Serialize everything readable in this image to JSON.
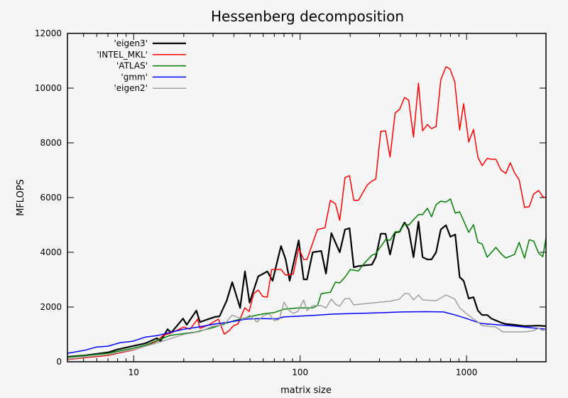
{
  "chart_data": {
    "type": "line",
    "title": "Hessenberg decomposition",
    "xlabel": "matrix size",
    "ylabel": "MFLOPS",
    "xscale": "log",
    "xlim": [
      4,
      3000
    ],
    "ylim": [
      0,
      12000
    ],
    "xticks": [
      {
        "value": 10,
        "label": "10"
      },
      {
        "value": 100,
        "label": "100"
      },
      {
        "value": 1000,
        "label": "1000"
      }
    ],
    "yticks": [
      {
        "value": 0,
        "label": "0"
      },
      {
        "value": 2000,
        "label": "2000"
      },
      {
        "value": 4000,
        "label": "4000"
      },
      {
        "value": 6000,
        "label": "6000"
      },
      {
        "value": 8000,
        "label": "8000"
      },
      {
        "value": 10000,
        "label": "10000"
      },
      {
        "value": 12000,
        "label": "12000"
      }
    ],
    "grid": false,
    "legend_position": "top-left",
    "series": [
      {
        "name": "'eigen3'",
        "color": "#000000",
        "points": [
          [
            4,
            180
          ],
          [
            5.1,
            230
          ],
          [
            7,
            340
          ],
          [
            8,
            450
          ],
          [
            9.8,
            570
          ],
          [
            11.7,
            670
          ],
          [
            13.8,
            860
          ],
          [
            14.5,
            750
          ],
          [
            16,
            1190
          ],
          [
            16.8,
            1060
          ],
          [
            19.8,
            1580
          ],
          [
            20.8,
            1350
          ],
          [
            23.8,
            1870
          ],
          [
            25,
            1450
          ],
          [
            27.2,
            1530
          ],
          [
            30.8,
            1640
          ],
          [
            32.8,
            1660
          ],
          [
            36.2,
            2230
          ],
          [
            39.1,
            2910
          ],
          [
            43.6,
            1970
          ],
          [
            46.6,
            3300
          ],
          [
            49.7,
            2160
          ],
          [
            56,
            3120
          ],
          [
            63.5,
            3300
          ],
          [
            68.3,
            2960
          ],
          [
            76.8,
            4230
          ],
          [
            81.8,
            3740
          ],
          [
            86.5,
            2960
          ],
          [
            98,
            4440
          ],
          [
            105,
            3010
          ],
          [
            110,
            3010
          ],
          [
            119,
            4000
          ],
          [
            134,
            4050
          ],
          [
            143,
            3220
          ],
          [
            154,
            4700
          ],
          [
            173,
            4000
          ],
          [
            186,
            4830
          ],
          [
            198,
            4880
          ],
          [
            210,
            3450
          ],
          [
            224,
            3500
          ],
          [
            270,
            3550
          ],
          [
            285,
            3820
          ],
          [
            305,
            4680
          ],
          [
            326,
            4680
          ],
          [
            347,
            3920
          ],
          [
            372,
            4730
          ],
          [
            396,
            4750
          ],
          [
            424,
            5090
          ],
          [
            449,
            4830
          ],
          [
            480,
            3820
          ],
          [
            514,
            5120
          ],
          [
            544,
            3820
          ],
          [
            582,
            3740
          ],
          [
            616,
            3740
          ],
          [
            656,
            4000
          ],
          [
            700,
            4830
          ],
          [
            752,
            4990
          ],
          [
            800,
            4570
          ],
          [
            855,
            4650
          ],
          [
            909,
            3090
          ],
          [
            960,
            2960
          ],
          [
            1030,
            2310
          ],
          [
            1100,
            2360
          ],
          [
            1170,
            1870
          ],
          [
            1240,
            1710
          ],
          [
            1330,
            1710
          ],
          [
            1410,
            1580
          ],
          [
            1500,
            1510
          ],
          [
            1610,
            1430
          ],
          [
            1720,
            1380
          ],
          [
            1940,
            1350
          ],
          [
            2230,
            1300
          ],
          [
            2710,
            1320
          ],
          [
            3000,
            1300
          ]
        ]
      },
      {
        "name": "'INTEL_MKL'",
        "color": "#ff0000",
        "points": [
          [
            4,
            80
          ],
          [
            7,
            230
          ],
          [
            9.8,
            420
          ],
          [
            11.7,
            570
          ],
          [
            13.8,
            750
          ],
          [
            15,
            960
          ],
          [
            16.5,
            1040
          ],
          [
            18.1,
            1140
          ],
          [
            20,
            1270
          ],
          [
            21.8,
            1190
          ],
          [
            24.2,
            1560
          ],
          [
            25,
            1220
          ],
          [
            28.3,
            1350
          ],
          [
            32.3,
            1560
          ],
          [
            35,
            1010
          ],
          [
            37.5,
            1140
          ],
          [
            39.8,
            1320
          ],
          [
            42.3,
            1380
          ],
          [
            46.5,
            1970
          ],
          [
            49.4,
            1840
          ],
          [
            52.6,
            2490
          ],
          [
            56,
            2620
          ],
          [
            59.6,
            2390
          ],
          [
            63.5,
            2360
          ],
          [
            67.4,
            3370
          ],
          [
            76.8,
            3370
          ],
          [
            81.8,
            3170
          ],
          [
            91,
            3200
          ],
          [
            98,
            4150
          ],
          [
            105,
            3740
          ],
          [
            110,
            3740
          ],
          [
            127,
            4830
          ],
          [
            141,
            4900
          ],
          [
            152,
            5900
          ],
          [
            163,
            5770
          ],
          [
            173,
            5170
          ],
          [
            186,
            6730
          ],
          [
            198,
            6800
          ],
          [
            210,
            5900
          ],
          [
            224,
            5900
          ],
          [
            254,
            6470
          ],
          [
            270,
            6600
          ],
          [
            285,
            6680
          ],
          [
            305,
            8420
          ],
          [
            326,
            8440
          ],
          [
            347,
            7480
          ],
          [
            372,
            9090
          ],
          [
            396,
            9220
          ],
          [
            424,
            9660
          ],
          [
            449,
            9560
          ],
          [
            480,
            8210
          ],
          [
            514,
            10180
          ],
          [
            544,
            8440
          ],
          [
            582,
            8670
          ],
          [
            616,
            8520
          ],
          [
            656,
            8600
          ],
          [
            700,
            10300
          ],
          [
            752,
            10780
          ],
          [
            795,
            10700
          ],
          [
            849,
            10230
          ],
          [
            909,
            8470
          ],
          [
            960,
            9430
          ],
          [
            1030,
            8030
          ],
          [
            1100,
            8490
          ],
          [
            1170,
            7480
          ],
          [
            1240,
            7170
          ],
          [
            1330,
            7430
          ],
          [
            1410,
            7400
          ],
          [
            1500,
            7400
          ],
          [
            1610,
            7010
          ],
          [
            1720,
            6880
          ],
          [
            1830,
            7270
          ],
          [
            1940,
            6910
          ],
          [
            2070,
            6650
          ],
          [
            2230,
            5640
          ],
          [
            2380,
            5670
          ],
          [
            2530,
            6130
          ],
          [
            2710,
            6260
          ],
          [
            2870,
            6030
          ],
          [
            3000,
            6000
          ]
        ]
      },
      {
        "name": "'ATLAS'",
        "color": "#008000",
        "points": [
          [
            4,
            160
          ],
          [
            7,
            310
          ],
          [
            9.8,
            490
          ],
          [
            11.7,
            600
          ],
          [
            16.5,
            960
          ],
          [
            23.8,
            1090
          ],
          [
            30,
            1250
          ],
          [
            40,
            1500
          ],
          [
            50,
            1650
          ],
          [
            60,
            1750
          ],
          [
            70,
            1800
          ],
          [
            80,
            1920
          ],
          [
            97,
            1970
          ],
          [
            119,
            1970
          ],
          [
            127,
            2050
          ],
          [
            134,
            2490
          ],
          [
            152,
            2540
          ],
          [
            163,
            2910
          ],
          [
            173,
            2880
          ],
          [
            186,
            3090
          ],
          [
            200,
            3370
          ],
          [
            224,
            3320
          ],
          [
            244,
            3610
          ],
          [
            270,
            3890
          ],
          [
            285,
            3950
          ],
          [
            305,
            4210
          ],
          [
            326,
            4460
          ],
          [
            347,
            4440
          ],
          [
            372,
            4750
          ],
          [
            396,
            4750
          ],
          [
            424,
            5040
          ],
          [
            449,
            4990
          ],
          [
            480,
            5190
          ],
          [
            514,
            5380
          ],
          [
            544,
            5380
          ],
          [
            582,
            5610
          ],
          [
            616,
            5300
          ],
          [
            656,
            5740
          ],
          [
            700,
            5870
          ],
          [
            752,
            5840
          ],
          [
            800,
            5950
          ],
          [
            855,
            5430
          ],
          [
            909,
            5480
          ],
          [
            1030,
            4730
          ],
          [
            1100,
            5010
          ],
          [
            1170,
            4360
          ],
          [
            1240,
            4310
          ],
          [
            1330,
            3820
          ],
          [
            1500,
            4180
          ],
          [
            1610,
            3950
          ],
          [
            1720,
            3790
          ],
          [
            1940,
            3920
          ],
          [
            2070,
            4360
          ],
          [
            2230,
            3790
          ],
          [
            2380,
            4460
          ],
          [
            2530,
            4410
          ],
          [
            2710,
            3970
          ],
          [
            2870,
            3840
          ],
          [
            3000,
            4520
          ]
        ]
      },
      {
        "name": "'gmm'",
        "color": "#0000ff",
        "points": [
          [
            4,
            310
          ],
          [
            5.1,
            420
          ],
          [
            6,
            540
          ],
          [
            7,
            570
          ],
          [
            8.3,
            700
          ],
          [
            9.9,
            750
          ],
          [
            11.7,
            900
          ],
          [
            14,
            960
          ],
          [
            16.5,
            1070
          ],
          [
            20,
            1190
          ],
          [
            24.5,
            1270
          ],
          [
            30.8,
            1380
          ],
          [
            37.5,
            1450
          ],
          [
            47.5,
            1560
          ],
          [
            58,
            1580
          ],
          [
            72.5,
            1570
          ],
          [
            80,
            1640
          ],
          [
            119,
            1690
          ],
          [
            155,
            1740
          ],
          [
            295,
            1790
          ],
          [
            413,
            1820
          ],
          [
            572,
            1830
          ],
          [
            727,
            1820
          ],
          [
            855,
            1710
          ],
          [
            1000,
            1580
          ],
          [
            1220,
            1400
          ],
          [
            1540,
            1350
          ],
          [
            1940,
            1300
          ],
          [
            3000,
            1190
          ]
        ]
      },
      {
        "name": "'eigen2'",
        "color": "#a0a0a0",
        "points": [
          [
            4,
            100
          ],
          [
            7,
            260
          ],
          [
            10,
            450
          ],
          [
            14,
            700
          ],
          [
            20,
            1000
          ],
          [
            25,
            1100
          ],
          [
            30,
            1300
          ],
          [
            35,
            1350
          ],
          [
            39,
            1710
          ],
          [
            45,
            1550
          ],
          [
            50,
            1700
          ],
          [
            55,
            1450
          ],
          [
            60,
            1680
          ],
          [
            65,
            1750
          ],
          [
            70,
            1500
          ],
          [
            75,
            1550
          ],
          [
            80,
            2180
          ],
          [
            86,
            1870
          ],
          [
            91,
            1770
          ],
          [
            97,
            1840
          ],
          [
            105,
            2260
          ],
          [
            110,
            1870
          ],
          [
            119,
            2050
          ],
          [
            134,
            2050
          ],
          [
            143,
            1970
          ],
          [
            154,
            2290
          ],
          [
            163,
            2100
          ],
          [
            173,
            2030
          ],
          [
            186,
            2310
          ],
          [
            198,
            2310
          ],
          [
            210,
            2080
          ],
          [
            285,
            2160
          ],
          [
            347,
            2210
          ],
          [
            396,
            2290
          ],
          [
            424,
            2490
          ],
          [
            449,
            2490
          ],
          [
            480,
            2260
          ],
          [
            514,
            2440
          ],
          [
            544,
            2260
          ],
          [
            656,
            2230
          ],
          [
            752,
            2440
          ],
          [
            849,
            2290
          ],
          [
            909,
            1970
          ],
          [
            1030,
            1690
          ],
          [
            1170,
            1450
          ],
          [
            1240,
            1320
          ],
          [
            1500,
            1270
          ],
          [
            1650,
            1090
          ],
          [
            2230,
            1090
          ],
          [
            2530,
            1140
          ],
          [
            2710,
            1220
          ],
          [
            2870,
            1140
          ],
          [
            3000,
            1190
          ]
        ]
      }
    ]
  }
}
